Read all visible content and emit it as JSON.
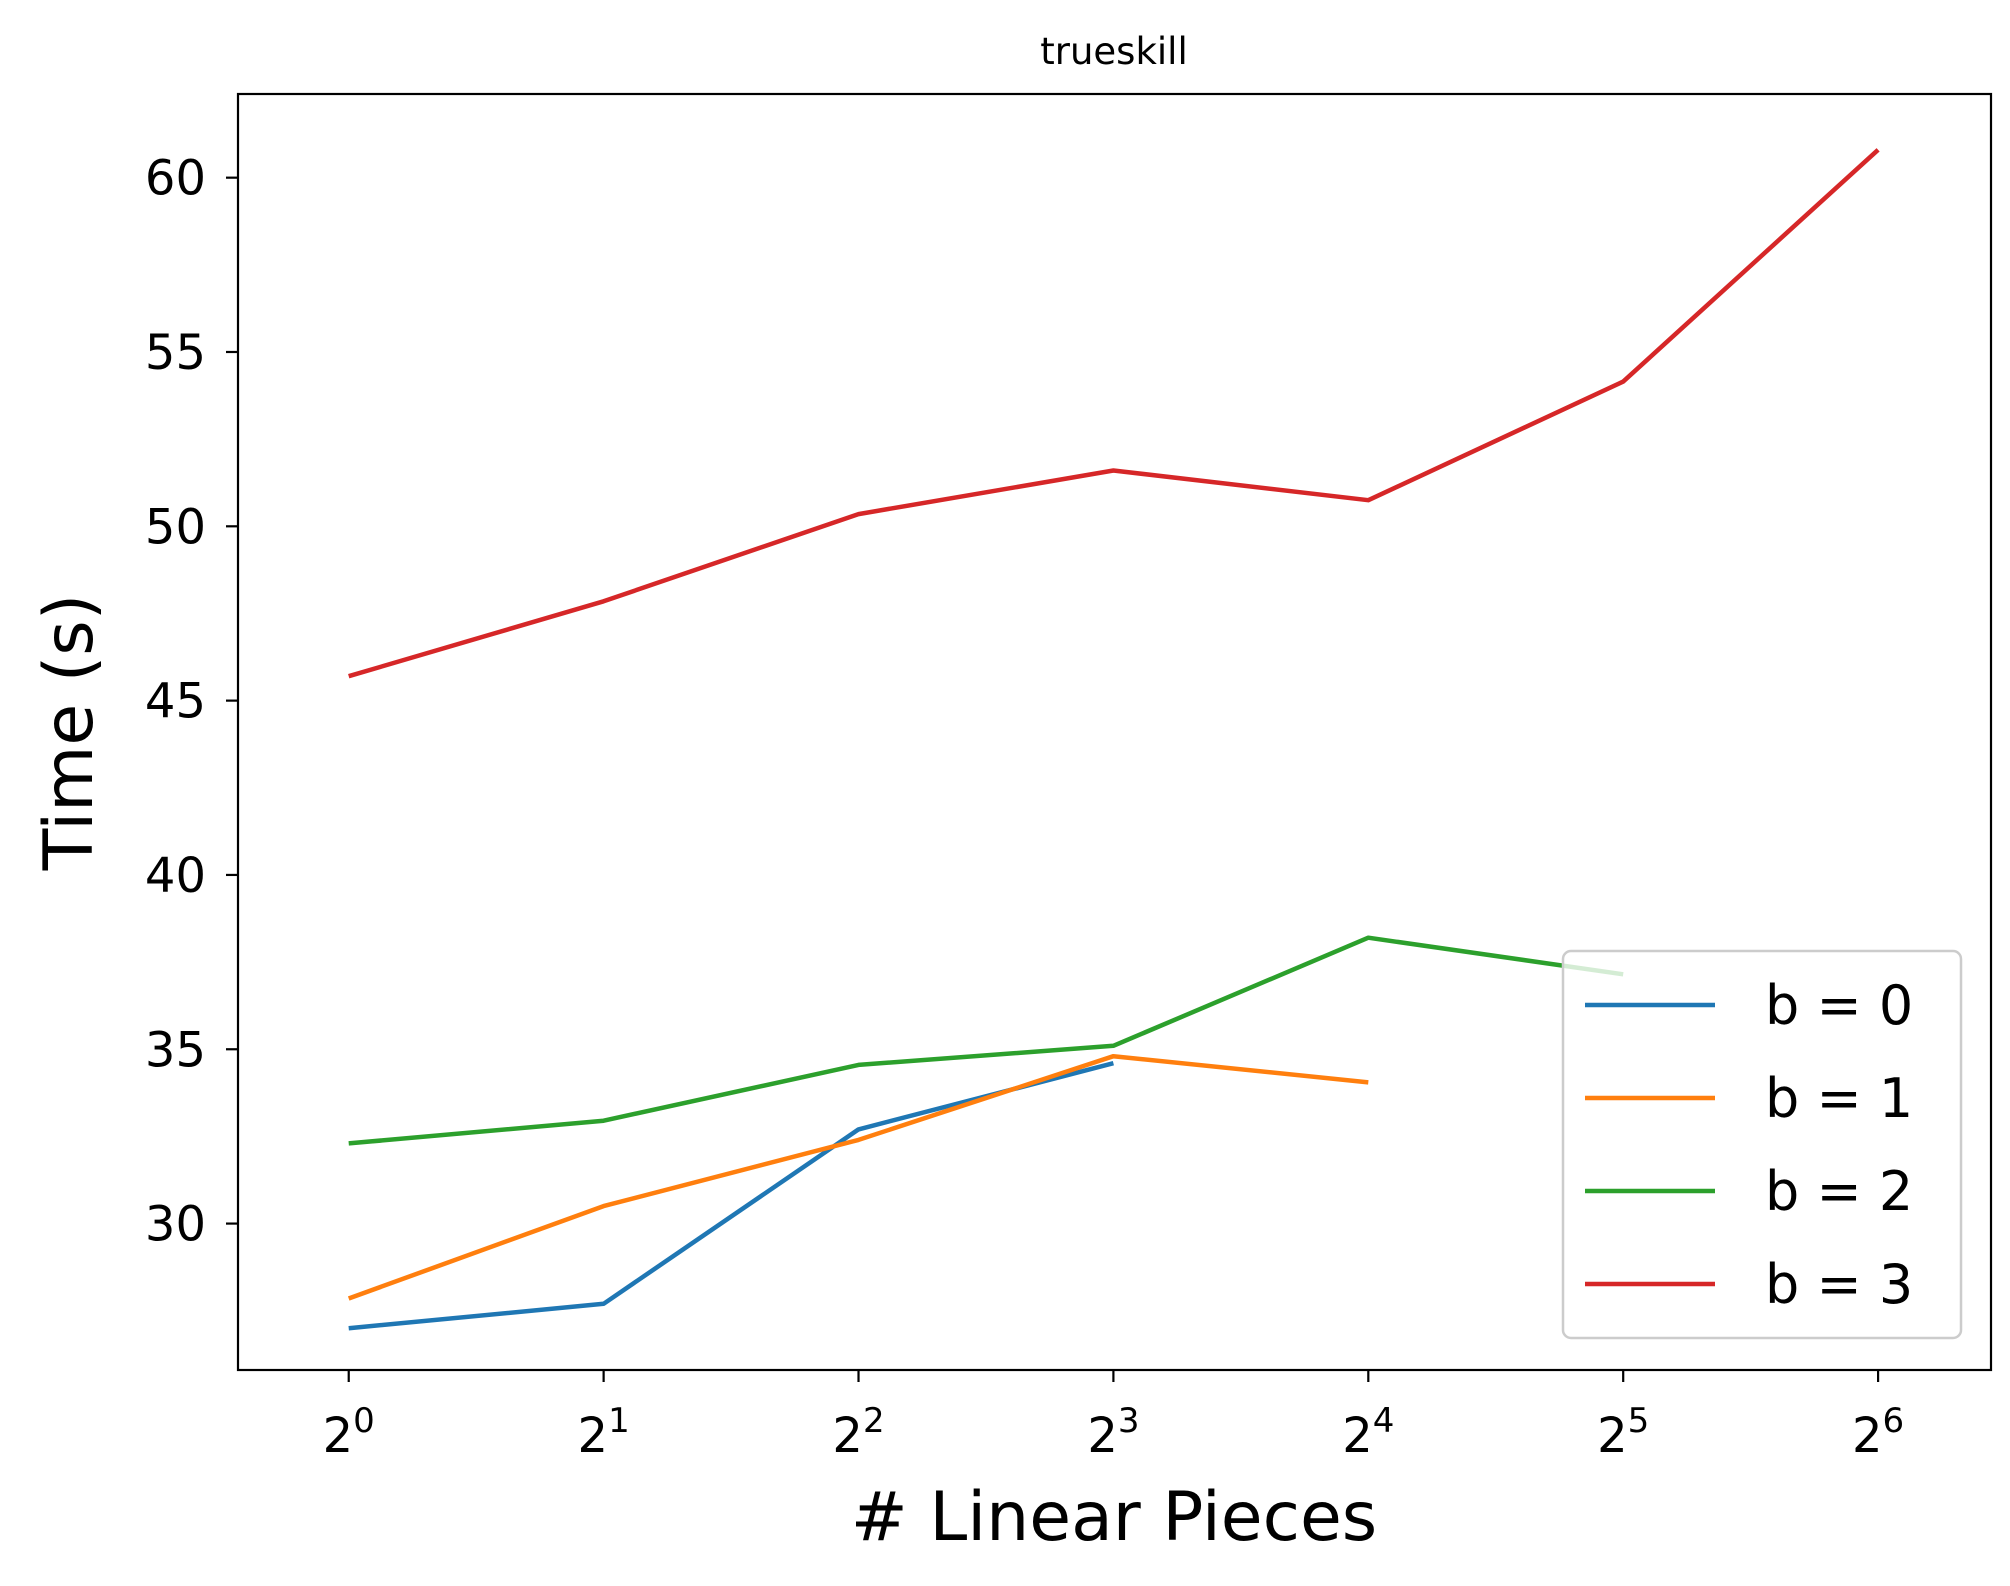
{
  "chart_data": {
    "type": "line",
    "title": "trueskill",
    "xlabel": "# Linear Pieces",
    "ylabel": "Time (s)",
    "x_scale": "log2",
    "x_tick_base": "2",
    "x_ticks": [
      {
        "value": 1,
        "exp": "0"
      },
      {
        "value": 2,
        "exp": "1"
      },
      {
        "value": 4,
        "exp": "2"
      },
      {
        "value": 8,
        "exp": "3"
      },
      {
        "value": 16,
        "exp": "4"
      },
      {
        "value": 32,
        "exp": "5"
      },
      {
        "value": 64,
        "exp": "6"
      }
    ],
    "xlim": [
      0.74,
      87
    ],
    "ylim": [
      25.8,
      62.4
    ],
    "y_ticks": [
      {
        "value": 30,
        "label": "30"
      },
      {
        "value": 35,
        "label": "35"
      },
      {
        "value": 40,
        "label": "40"
      },
      {
        "value": 45,
        "label": "45"
      },
      {
        "value": 50,
        "label": "50"
      },
      {
        "value": 55,
        "label": "55"
      },
      {
        "value": 60,
        "label": "60"
      }
    ],
    "grid": false,
    "legend_position": "lower-right",
    "series": [
      {
        "name": "b = 0",
        "color": "#1f77b4",
        "x": [
          1,
          2,
          4,
          8
        ],
        "y": [
          27.0,
          27.7,
          32.7,
          34.6
        ]
      },
      {
        "name": "b = 1",
        "color": "#ff7f0e",
        "x": [
          1,
          2,
          4,
          8,
          16
        ],
        "y": [
          27.85,
          30.5,
          32.4,
          34.8,
          34.05
        ]
      },
      {
        "name": "b = 2",
        "color": "#2ca02c",
        "x": [
          1,
          2,
          4,
          8,
          16,
          32
        ],
        "y": [
          32.3,
          32.95,
          34.55,
          35.1,
          38.2,
          37.15
        ]
      },
      {
        "name": "b = 3",
        "color": "#d62728",
        "x": [
          1,
          2,
          4,
          8,
          16,
          32,
          64
        ],
        "y": [
          45.7,
          47.85,
          50.35,
          51.6,
          50.75,
          54.15,
          60.8
        ]
      }
    ]
  }
}
